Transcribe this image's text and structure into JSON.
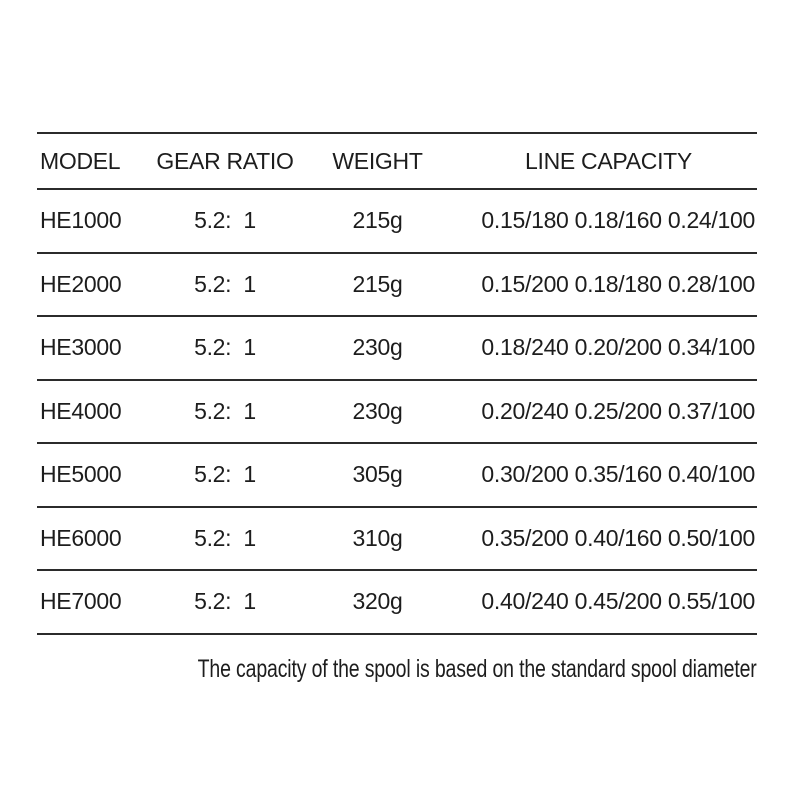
{
  "colors": {
    "background": "#ffffff",
    "text": "#1d1d1d",
    "line": "#2b2b2b"
  },
  "table": {
    "columns": [
      "MODEL",
      "GEAR RATIO",
      "WEIGHT",
      "LINE CAPACITY"
    ],
    "rows": [
      {
        "model": "HE1000",
        "gear_ratio": "5.2:  1",
        "weight": "215g",
        "line_capacity": "0.15/180 0.18/160 0.24/100"
      },
      {
        "model": "HE2000",
        "gear_ratio": "5.2:  1",
        "weight": "215g",
        "line_capacity": "0.15/200 0.18/180 0.28/100"
      },
      {
        "model": "HE3000",
        "gear_ratio": "5.2:  1",
        "weight": "230g",
        "line_capacity": "0.18/240 0.20/200 0.34/100"
      },
      {
        "model": "HE4000",
        "gear_ratio": "5.2:  1",
        "weight": "230g",
        "line_capacity": "0.20/240 0.25/200 0.37/100"
      },
      {
        "model": "HE5000",
        "gear_ratio": "5.2:  1",
        "weight": "305g",
        "line_capacity": "0.30/200 0.35/160 0.40/100"
      },
      {
        "model": "HE6000",
        "gear_ratio": "5.2:  1",
        "weight": "310g",
        "line_capacity": "0.35/200 0.40/160 0.50/100"
      },
      {
        "model": "HE7000",
        "gear_ratio": "5.2:  1",
        "weight": "320g",
        "line_capacity": "0.40/240 0.45/200 0.55/100"
      }
    ]
  },
  "footer": {
    "note": "The capacity of the spool is based on the standard spool diameter"
  }
}
